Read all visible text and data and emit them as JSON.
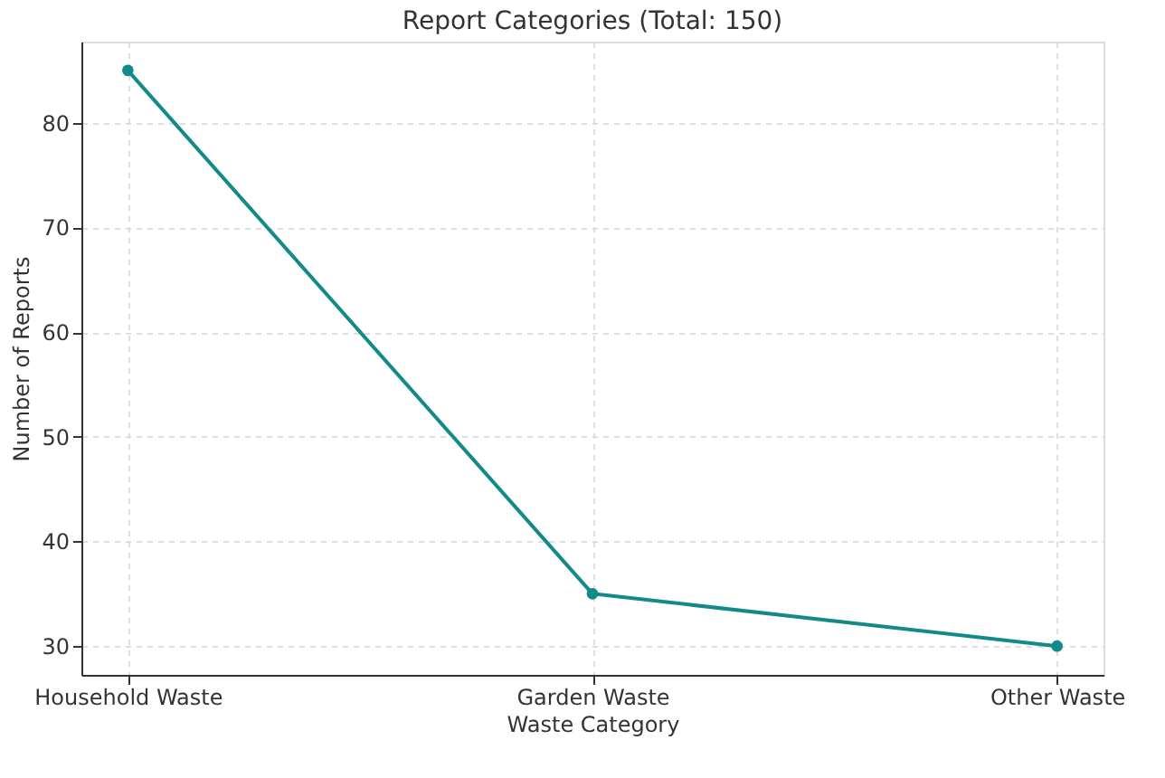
{
  "chart_data": {
    "type": "line",
    "title": "Report Categories (Total: 150)",
    "xlabel": "Waste Category",
    "ylabel": "Number of Reports",
    "categories": [
      "Household Waste",
      "Garden Waste",
      "Other Waste"
    ],
    "series": [
      {
        "color": "#138a8a",
        "values": [
          85,
          35,
          30
        ]
      }
    ],
    "ylim": [
      27.25,
      87.75
    ],
    "yticks": [
      30,
      40,
      50,
      60,
      70,
      80
    ],
    "grid": true,
    "marker": "circle",
    "line_style": "solid"
  }
}
